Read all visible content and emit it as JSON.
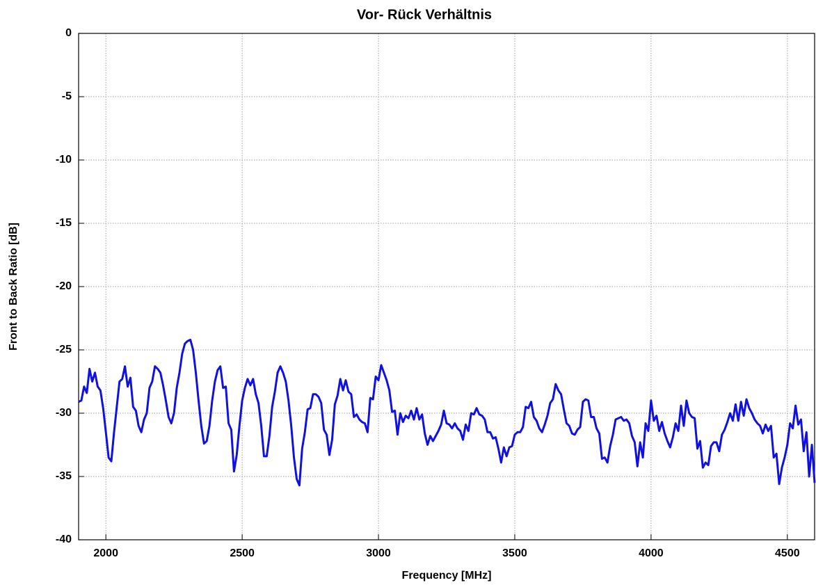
{
  "chart_data": {
    "type": "line",
    "title": "Vor- Rück Verhältnis",
    "x_label": "Frequency [MHz]",
    "y_label": "Front to Back Ratio [dB]",
    "xlim": [
      1900,
      4600
    ],
    "ylim": [
      -40,
      0
    ],
    "xticks": [
      2000,
      2500,
      3000,
      3500,
      4000,
      4500
    ],
    "yticks": [
      0,
      -5,
      -10,
      -15,
      -20,
      -25,
      -30,
      -35,
      -40
    ],
    "grid": true,
    "x": [
      1900,
      1910,
      1920,
      1930,
      1940,
      1950,
      1960,
      1970,
      1980,
      1990,
      2000,
      2010,
      2020,
      2030,
      2040,
      2050,
      2060,
      2070,
      2080,
      2090,
      2100,
      2110,
      2120,
      2130,
      2140,
      2150,
      2160,
      2170,
      2180,
      2190,
      2200,
      2210,
      2220,
      2230,
      2240,
      2250,
      2260,
      2270,
      2280,
      2290,
      2300,
      2310,
      2320,
      2330,
      2340,
      2350,
      2360,
      2370,
      2380,
      2390,
      2400,
      2410,
      2420,
      2430,
      2440,
      2450,
      2460,
      2470,
      2480,
      2490,
      2500,
      2510,
      2520,
      2530,
      2540,
      2550,
      2560,
      2570,
      2580,
      2590,
      2600,
      2610,
      2620,
      2630,
      2640,
      2650,
      2660,
      2670,
      2680,
      2690,
      2700,
      2710,
      2720,
      2730,
      2740,
      2750,
      2760,
      2770,
      2780,
      2790,
      2800,
      2810,
      2820,
      2830,
      2840,
      2850,
      2860,
      2870,
      2880,
      2890,
      2900,
      2910,
      2920,
      2930,
      2940,
      2950,
      2960,
      2970,
      2980,
      2990,
      3000,
      3010,
      3020,
      3030,
      3040,
      3050,
      3060,
      3070,
      3080,
      3090,
      3100,
      3110,
      3120,
      3130,
      3140,
      3150,
      3160,
      3170,
      3180,
      3190,
      3200,
      3210,
      3220,
      3230,
      3240,
      3250,
      3260,
      3270,
      3280,
      3290,
      3300,
      3310,
      3320,
      3330,
      3340,
      3350,
      3360,
      3370,
      3380,
      3390,
      3400,
      3410,
      3420,
      3430,
      3440,
      3450,
      3460,
      3470,
      3480,
      3490,
      3500,
      3510,
      3520,
      3530,
      3540,
      3550,
      3560,
      3570,
      3580,
      3590,
      3600,
      3610,
      3620,
      3630,
      3640,
      3650,
      3660,
      3670,
      3680,
      3690,
      3700,
      3710,
      3720,
      3730,
      3740,
      3750,
      3760,
      3770,
      3780,
      3790,
      3800,
      3810,
      3820,
      3830,
      3840,
      3850,
      3860,
      3870,
      3880,
      3890,
      3900,
      3910,
      3920,
      3930,
      3940,
      3950,
      3960,
      3970,
      3980,
      3990,
      4000,
      4010,
      4020,
      4030,
      4040,
      4050,
      4060,
      4070,
      4080,
      4090,
      4100,
      4110,
      4120,
      4130,
      4140,
      4150,
      4160,
      4170,
      4180,
      4190,
      4200,
      4210,
      4220,
      4230,
      4240,
      4250,
      4260,
      4270,
      4280,
      4290,
      4300,
      4310,
      4320,
      4330,
      4340,
      4350,
      4360,
      4370,
      4380,
      4390,
      4400,
      4410,
      4420,
      4430,
      4440,
      4450,
      4460,
      4470,
      4480,
      4490,
      4500,
      4510,
      4520,
      4530,
      4540,
      4550,
      4560,
      4570,
      4580,
      4590,
      4600
    ],
    "series": [
      {
        "name": "Front to Back Ratio",
        "color": "#1010e0",
        "values": [
          -29.1,
          -29.0,
          -27.9,
          -28.4,
          -26.5,
          -27.5,
          -26.8,
          -27.9,
          -28.2,
          -29.6,
          -31.5,
          -33.5,
          -33.8,
          -31.5,
          -29.5,
          -27.5,
          -27.3,
          -26.3,
          -27.9,
          -27.2,
          -29.5,
          -29.8,
          -31.0,
          -31.5,
          -30.5,
          -30.0,
          -28.0,
          -27.5,
          -26.3,
          -26.5,
          -26.8,
          -27.8,
          -29.0,
          -30.3,
          -30.8,
          -30.0,
          -28.0,
          -26.8,
          -25.3,
          -24.5,
          -24.3,
          -24.2,
          -25.0,
          -26.8,
          -29.0,
          -31.0,
          -32.4,
          -32.2,
          -31.0,
          -29.0,
          -27.5,
          -26.6,
          -26.3,
          -28.0,
          -27.9,
          -30.8,
          -31.3,
          -34.6,
          -33.3,
          -31.0,
          -29.0,
          -28.0,
          -27.3,
          -27.8,
          -27.3,
          -28.5,
          -29.2,
          -31.0,
          -33.4,
          -33.4,
          -31.8,
          -29.5,
          -28.3,
          -26.8,
          -26.3,
          -26.8,
          -27.5,
          -29.0,
          -31.0,
          -33.5,
          -35.2,
          -35.7,
          -32.8,
          -31.5,
          -29.7,
          -29.6,
          -28.5,
          -28.5,
          -28.7,
          -29.2,
          -31.3,
          -31.7,
          -33.3,
          -32.1,
          -29.3,
          -28.6,
          -27.3,
          -28.2,
          -27.4,
          -28.3,
          -28.5,
          -30.3,
          -30.1,
          -30.5,
          -30.7,
          -30.8,
          -31.5,
          -28.8,
          -28.9,
          -27.1,
          -27.4,
          -26.2,
          -26.8,
          -27.4,
          -28.2,
          -29.9,
          -29.8,
          -31.7,
          -30.0,
          -30.7,
          -30.2,
          -30.4,
          -29.8,
          -30.5,
          -29.6,
          -30.5,
          -30.1,
          -31.6,
          -32.5,
          -31.8,
          -32.2,
          -31.8,
          -31.4,
          -30.9,
          -29.8,
          -30.8,
          -30.9,
          -31.2,
          -30.8,
          -31.2,
          -31.4,
          -32.1,
          -30.9,
          -31.4,
          -30.0,
          -30.1,
          -29.6,
          -30.1,
          -30.2,
          -30.5,
          -31.5,
          -31.5,
          -32.0,
          -31.9,
          -32.8,
          -33.9,
          -32.7,
          -33.4,
          -32.7,
          -32.6,
          -31.7,
          -31.5,
          -31.5,
          -31.1,
          -29.5,
          -29.6,
          -29.1,
          -30.3,
          -30.6,
          -31.2,
          -31.5,
          -30.9,
          -30.2,
          -29.2,
          -28.9,
          -27.7,
          -28.2,
          -28.5,
          -29.7,
          -30.8,
          -31.0,
          -31.6,
          -31.7,
          -31.3,
          -31.1,
          -29.1,
          -28.9,
          -29.0,
          -30.3,
          -30.3,
          -31.2,
          -31.6,
          -33.6,
          -33.5,
          -33.9,
          -32.6,
          -31.7,
          -30.5,
          -30.4,
          -30.3,
          -30.6,
          -30.5,
          -30.8,
          -31.8,
          -32.3,
          -34.2,
          -32.3,
          -33.5,
          -30.8,
          -31.4,
          -29.0,
          -30.6,
          -30.2,
          -31.4,
          -30.7,
          -31.6,
          -32.2,
          -32.7,
          -31.9,
          -30.8,
          -31.4,
          -29.4,
          -31.0,
          -29.0,
          -30.0,
          -30.3,
          -30.4,
          -32.8,
          -32.2,
          -34.3,
          -33.9,
          -34.1,
          -32.6,
          -32.3,
          -32.3,
          -33.0,
          -31.7,
          -31.3,
          -30.7,
          -30.0,
          -30.6,
          -29.3,
          -30.6,
          -29.1,
          -30.2,
          -28.9,
          -29.6,
          -30.0,
          -30.5,
          -30.8,
          -31.0,
          -31.6,
          -30.9,
          -31.4,
          -31.0,
          -33.5,
          -33.2,
          -35.6,
          -34.3,
          -33.5,
          -32.5,
          -30.8,
          -31.2,
          -29.4,
          -30.9,
          -30.5,
          -33.0,
          -31.5,
          -35.0,
          -32.5,
          -35.5
        ]
      }
    ]
  }
}
